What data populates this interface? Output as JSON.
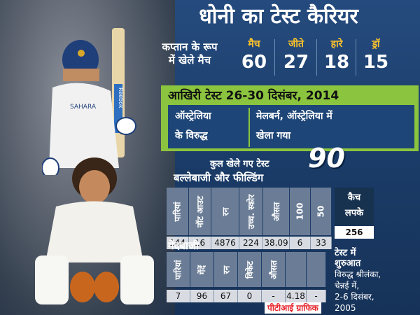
{
  "title": "धोनी का टेस्ट कैरियर",
  "captain": {
    "label_line1": "कप्तान के रूप",
    "label_line2": "में खेले मैच",
    "stats": [
      {
        "label": "मैच",
        "value": "60"
      },
      {
        "label": "जीते",
        "value": "27"
      },
      {
        "label": "हारे",
        "value": "18"
      },
      {
        "label": "ड्रॉ",
        "value": "15"
      }
    ]
  },
  "last_test": {
    "title": "आखिरी टेस्ट 26-30 दिसंबर, 2014",
    "opponent_line1": "ऑस्ट्रेलिया",
    "opponent_line2": "के विरुद्ध",
    "venue_line1": "मेलबर्न, ऑस्ट्रेलिया में",
    "venue_line2": "खेला गया"
  },
  "total_tests": {
    "label": "कुल खेले गए टेस्ट",
    "value": "90"
  },
  "batting": {
    "heading": "बल्लेबाजी और फील्डिंग",
    "columns": [
      {
        "header": "पारियां",
        "value": "144"
      },
      {
        "header": "नॉट आउट",
        "value": "16"
      },
      {
        "header": "रन",
        "value": "4876"
      },
      {
        "header": "उच्च. स्कोर",
        "value": "224"
      },
      {
        "header": "औसत",
        "value": "38.09"
      },
      {
        "header": "100",
        "value": "6"
      },
      {
        "header": "50",
        "value": "33"
      }
    ],
    "catches_header_line1": "कैच",
    "catches_header_line2": "लपके",
    "catches_value": "256"
  },
  "bowling": {
    "heading": "गेंदबाजी",
    "columns": [
      {
        "header": "पारियां",
        "value": "7"
      },
      {
        "header": "गेंदें",
        "value": "96"
      },
      {
        "header": "रन",
        "value": "67"
      },
      {
        "header": "विकेट",
        "value": "0"
      },
      {
        "header": "औसत",
        "value": "-"
      },
      {
        "header": "",
        "value": "4.18"
      },
      {
        "header": "",
        "value": "-"
      }
    ]
  },
  "debut": {
    "heading_line1": "टेस्ट में",
    "heading_line2": "शुरुआत",
    "line1": "विरुद्ध श्रीलंका,",
    "line2": "चेन्नई में,",
    "line3": "2-6 दिसंबर,",
    "line4": "2005"
  },
  "credit": "पीटीआई ग्राफिक",
  "bat_brand": "Reebok",
  "shirt_text": "SAHARA"
}
